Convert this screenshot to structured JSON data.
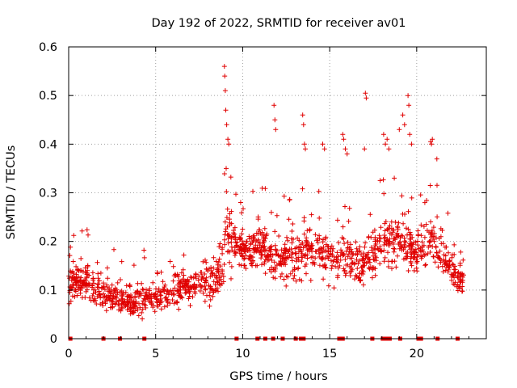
{
  "chart_data": {
    "type": "scatter",
    "title": "Day 192 of 2022, SRMTID for receiver av01",
    "xlabel": "GPS time / hours",
    "ylabel": "SRMTID / TECUs",
    "xlim": [
      0,
      24
    ],
    "ylim": [
      0,
      0.6
    ],
    "x_ticks": [
      "0",
      "5",
      "10",
      "15",
      "20"
    ],
    "x_tick_values": [
      0,
      5,
      10,
      15,
      20
    ],
    "y_ticks": [
      "0",
      "0.1",
      "0.2",
      "0.3",
      "0.4",
      "0.5",
      "0.6"
    ],
    "y_tick_values": [
      0,
      0.1,
      0.2,
      0.3,
      0.4,
      0.5,
      0.6
    ],
    "grid": true,
    "marker": "+",
    "series": [
      {
        "name": "SRMTID",
        "color": "#e00000",
        "envelope": [
          [
            0.0,
            0.11,
            0.05
          ],
          [
            1.0,
            0.12,
            0.05
          ],
          [
            2.0,
            0.09,
            0.04
          ],
          [
            3.0,
            0.08,
            0.04
          ],
          [
            4.0,
            0.08,
            0.04
          ],
          [
            5.0,
            0.085,
            0.04
          ],
          [
            6.0,
            0.1,
            0.045
          ],
          [
            7.0,
            0.11,
            0.045
          ],
          [
            8.0,
            0.12,
            0.05
          ],
          [
            8.9,
            0.14,
            0.06
          ],
          [
            9.0,
            0.22,
            0.09
          ],
          [
            9.5,
            0.2,
            0.06
          ],
          [
            10.0,
            0.18,
            0.05
          ],
          [
            11.0,
            0.19,
            0.05
          ],
          [
            12.0,
            0.16,
            0.06
          ],
          [
            13.0,
            0.17,
            0.06
          ],
          [
            14.0,
            0.19,
            0.06
          ],
          [
            15.0,
            0.17,
            0.06
          ],
          [
            16.0,
            0.16,
            0.06
          ],
          [
            17.0,
            0.16,
            0.06
          ],
          [
            18.0,
            0.19,
            0.07
          ],
          [
            19.0,
            0.2,
            0.07
          ],
          [
            20.0,
            0.18,
            0.06
          ],
          [
            21.0,
            0.2,
            0.07
          ],
          [
            22.0,
            0.14,
            0.05
          ],
          [
            22.7,
            0.11,
            0.04
          ]
        ],
        "n_points": 1500,
        "peaks": [
          [
            8.95,
            0.56
          ],
          [
            8.97,
            0.54
          ],
          [
            9.0,
            0.51
          ],
          [
            9.03,
            0.47
          ],
          [
            9.08,
            0.44
          ],
          [
            9.15,
            0.41
          ],
          [
            9.2,
            0.4
          ],
          [
            9.05,
            0.35
          ],
          [
            11.8,
            0.48
          ],
          [
            11.85,
            0.45
          ],
          [
            11.9,
            0.43
          ],
          [
            13.45,
            0.46
          ],
          [
            13.5,
            0.44
          ],
          [
            13.55,
            0.4
          ],
          [
            13.6,
            0.39
          ],
          [
            14.6,
            0.4
          ],
          [
            14.7,
            0.39
          ],
          [
            15.75,
            0.42
          ],
          [
            15.8,
            0.41
          ],
          [
            15.9,
            0.39
          ],
          [
            16.0,
            0.38
          ],
          [
            17.05,
            0.505
          ],
          [
            17.1,
            0.495
          ],
          [
            17.0,
            0.39
          ],
          [
            18.1,
            0.42
          ],
          [
            18.3,
            0.41
          ],
          [
            18.4,
            0.39
          ],
          [
            18.2,
            0.4
          ],
          [
            19.0,
            0.43
          ],
          [
            19.2,
            0.46
          ],
          [
            19.3,
            0.44
          ],
          [
            19.5,
            0.5
          ],
          [
            19.55,
            0.48
          ],
          [
            19.6,
            0.42
          ],
          [
            19.7,
            0.4
          ],
          [
            20.8,
            0.405
          ],
          [
            20.9,
            0.41
          ],
          [
            20.85,
            0.4
          ]
        ]
      },
      {
        "name": "zero-level gaps",
        "color": "#e00000",
        "x": [
          0.1,
          2.0,
          2.95,
          4.35,
          9.65,
          10.85,
          11.3,
          11.75,
          12.3,
          13.05,
          13.35,
          13.5,
          15.55,
          15.75,
          17.45,
          18.05,
          18.2,
          18.35,
          18.45,
          19.05,
          20.1,
          20.25,
          21.2,
          22.35
        ],
        "y": [
          0,
          0,
          0,
          0,
          0,
          0,
          0,
          0,
          0,
          0,
          0,
          0,
          0,
          0,
          0,
          0,
          0,
          0,
          0,
          0,
          0,
          0,
          0,
          0
        ]
      }
    ]
  }
}
